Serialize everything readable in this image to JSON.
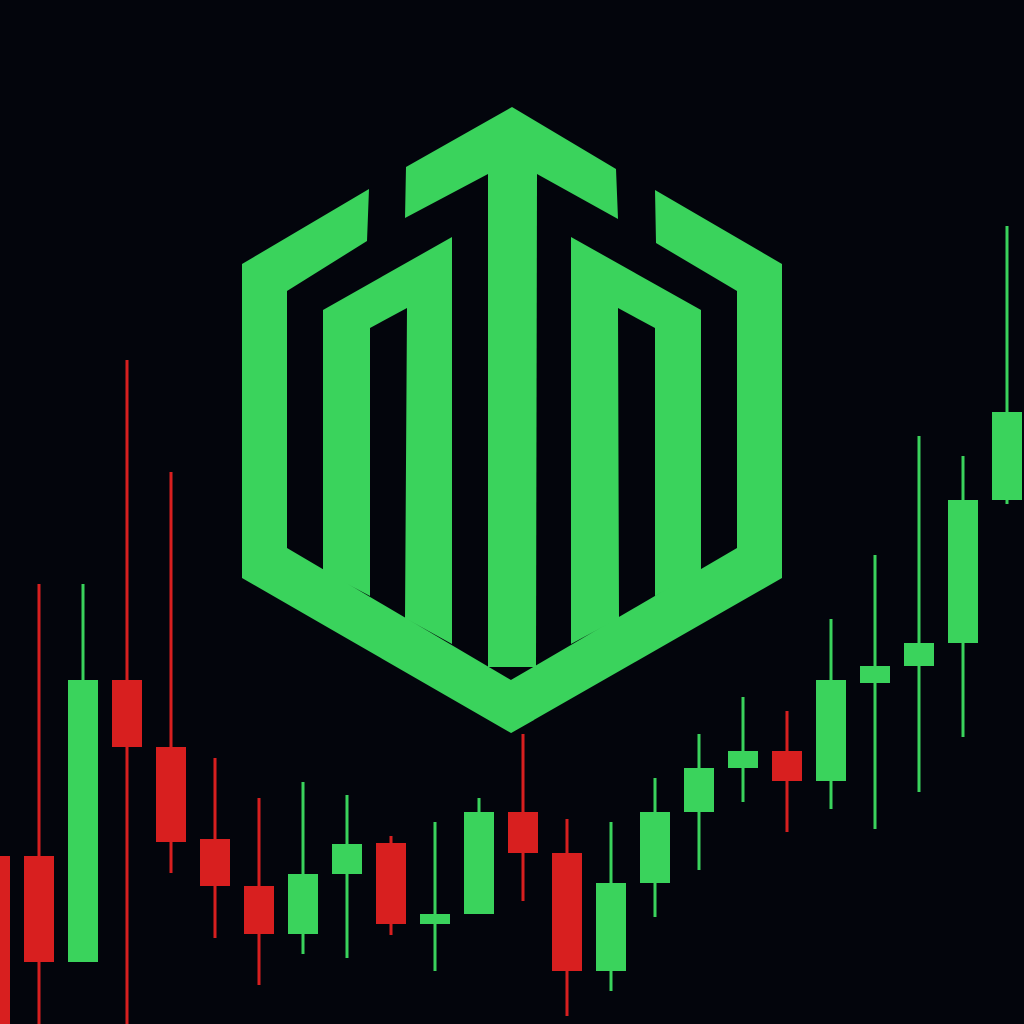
{
  "colors": {
    "background": "#03050c",
    "up": "#3ad35c",
    "down": "#d81f1f",
    "logo": "#3ad35c"
  },
  "logo": {
    "icon": "hexagon-buildings-logo-icon"
  },
  "chart_data": {
    "type": "candlestick",
    "y_domain": [
      0,
      1024
    ],
    "candles": [
      {
        "open": 168,
        "close": 0,
        "high": 168,
        "low": 0
      },
      {
        "open": 168,
        "close": 62,
        "high": 440,
        "low": 0
      },
      {
        "open": 62,
        "close": 344,
        "high": 440,
        "low": 62
      },
      {
        "open": 344,
        "close": 277,
        "high": 664,
        "low": 0
      },
      {
        "open": 277,
        "close": 182,
        "high": 552,
        "low": 151
      },
      {
        "open": 185,
        "close": 138,
        "high": 266,
        "low": 86
      },
      {
        "open": 138,
        "close": 90,
        "high": 226,
        "low": 39
      },
      {
        "open": 90,
        "close": 150,
        "high": 242,
        "low": 70
      },
      {
        "open": 150,
        "close": 180,
        "high": 229,
        "low": 66
      },
      {
        "open": 181,
        "close": 100,
        "high": 188,
        "low": 89
      },
      {
        "open": 100,
        "close": 110,
        "high": 202,
        "low": 53
      },
      {
        "open": 110,
        "close": 212,
        "high": 226,
        "low": 110
      },
      {
        "open": 212,
        "close": 171,
        "high": 290,
        "low": 123
      },
      {
        "open": 171,
        "close": 53,
        "high": 205,
        "low": 8
      },
      {
        "open": 53,
        "close": 141,
        "high": 202,
        "low": 33
      },
      {
        "open": 141,
        "close": 212,
        "high": 246,
        "low": 107
      },
      {
        "open": 212,
        "close": 256,
        "high": 290,
        "low": 154
      },
      {
        "open": 256,
        "close": 273,
        "high": 327,
        "low": 222
      },
      {
        "open": 273,
        "close": 243,
        "high": 313,
        "low": 192
      },
      {
        "open": 243,
        "close": 344,
        "high": 405,
        "low": 215
      },
      {
        "open": 341,
        "close": 358,
        "high": 469,
        "low": 195
      },
      {
        "open": 358,
        "close": 381,
        "high": 588,
        "low": 232
      },
      {
        "open": 381,
        "close": 524,
        "high": 568,
        "low": 287
      },
      {
        "open": 524,
        "close": 612,
        "high": 798,
        "low": 520
      }
    ]
  }
}
